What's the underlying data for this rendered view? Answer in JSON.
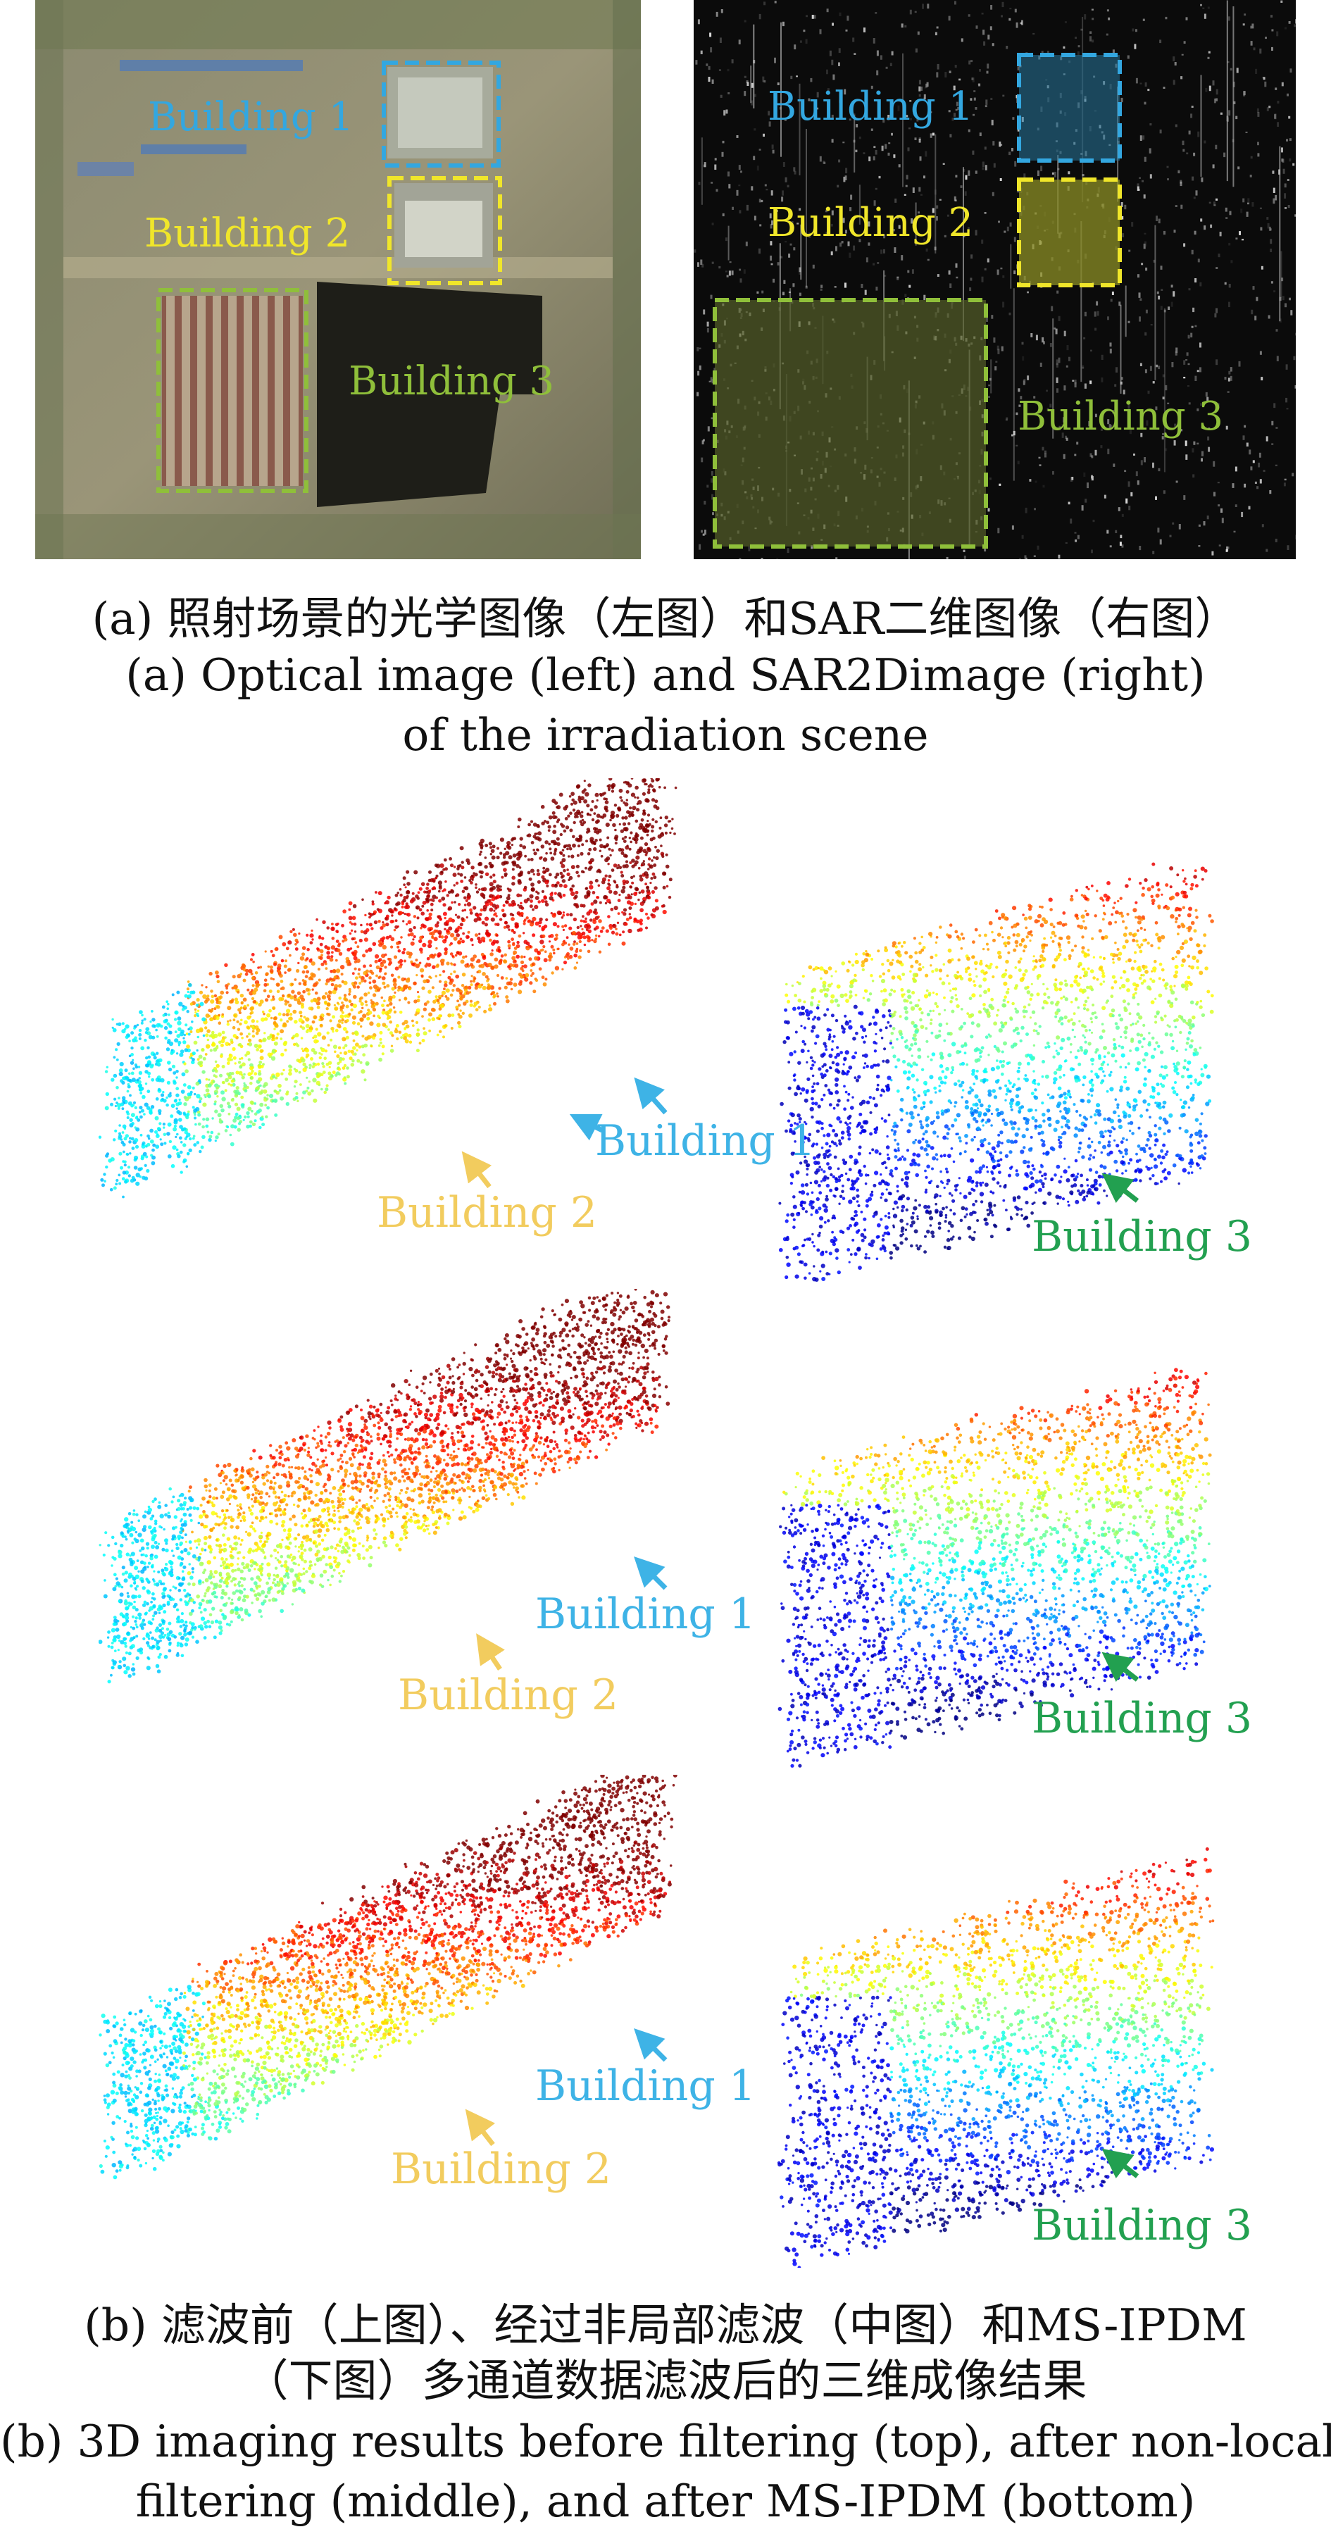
{
  "figure_a": {
    "optical": {
      "labels": [
        {
          "text": "Building 1",
          "color": "#33a7e0"
        },
        {
          "text": "Building 2",
          "color": "#f0e62a"
        },
        {
          "text": "Building 3",
          "color": "#8fbf3a"
        }
      ]
    },
    "sar": {
      "labels": [
        {
          "text": "Building 1",
          "color": "#33a7e0"
        },
        {
          "text": "Building 2",
          "color": "#f0e62a"
        },
        {
          "text": "Building 3",
          "color": "#8fbf3a"
        }
      ]
    },
    "caption_zh": "(a) 照射场景的光学图像（左图）和SAR二维图像（右图）",
    "caption_en_1": "(a) Optical image (left) and SAR2Dimage (right)",
    "caption_en_2": "of the irradiation scene"
  },
  "figure_b": {
    "rows": [
      {
        "left_labels": [
          "Building 1",
          "Building 2"
        ],
        "right_label": "Building 3"
      },
      {
        "left_labels": [
          "Building 1",
          "Building 2"
        ],
        "right_label": "Building 3"
      },
      {
        "left_labels": [
          "Building 1",
          "Building 2"
        ],
        "right_label": "Building 3"
      }
    ],
    "colors": {
      "building1": "#3eb3e6",
      "building2": "#f2cc5e",
      "building3": "#22a050"
    },
    "caption_zh_1": "(b) 滤波前（上图）、经过非局部滤波（中图）和MS-IPDM",
    "caption_zh_2": "（下图）多通道数据滤波后的三维成像结果",
    "caption_en_1": "(b) 3D imaging results before filtering (top), after non-local",
    "caption_en_2": "filtering (middle), and after MS-IPDM (bottom)"
  }
}
